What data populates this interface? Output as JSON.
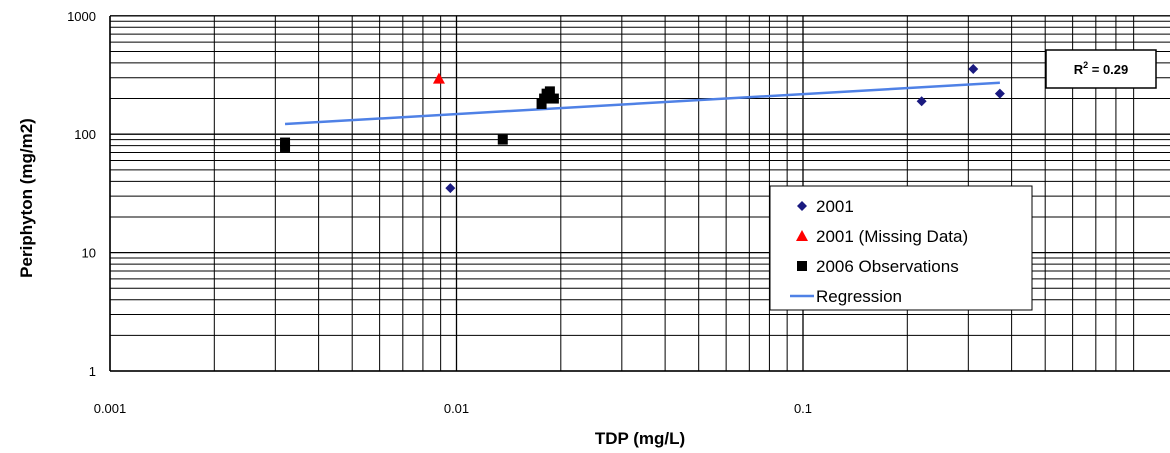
{
  "chart_data": {
    "type": "scatter",
    "title": "",
    "xlabel": "TDP (mg/L)",
    "ylabel": "Periphyton (mg/m2)",
    "x_scale": "log",
    "y_scale": "log",
    "xlim": [
      0.001,
      1
    ],
    "ylim": [
      1,
      1000
    ],
    "x_tick_labels": [
      "0.001",
      "0.01",
      "0.1"
    ],
    "y_tick_labels": [
      "1",
      "10",
      "100",
      "1000"
    ],
    "grid": true,
    "legend_position": "lower-right",
    "series": [
      {
        "name": "2001",
        "marker": "diamond",
        "color": "#1a1a80",
        "points": [
          [
            0.0096,
            35
          ],
          [
            0.22,
            190
          ],
          [
            0.31,
            355
          ],
          [
            0.37,
            220
          ]
        ]
      },
      {
        "name": "2001 (Missing Data)",
        "marker": "triangle",
        "color": "#ff0000",
        "points": [
          [
            0.0089,
            295
          ]
        ]
      },
      {
        "name": "2006 Observations",
        "marker": "square",
        "color": "#000000",
        "points": [
          [
            0.0032,
            78
          ],
          [
            0.0032,
            85
          ],
          [
            0.0136,
            90
          ],
          [
            0.0176,
            180
          ],
          [
            0.0179,
            200
          ],
          [
            0.0182,
            220
          ],
          [
            0.0186,
            230
          ],
          [
            0.0191,
            200
          ]
        ]
      },
      {
        "name": "Regression",
        "marker": "line",
        "color": "#4f81e6",
        "points": [
          [
            0.0032,
            122
          ],
          [
            0.37,
            272
          ]
        ]
      }
    ],
    "annotation": {
      "prefix": "R",
      "superscript": "2",
      "suffix": " = 0.29"
    }
  }
}
